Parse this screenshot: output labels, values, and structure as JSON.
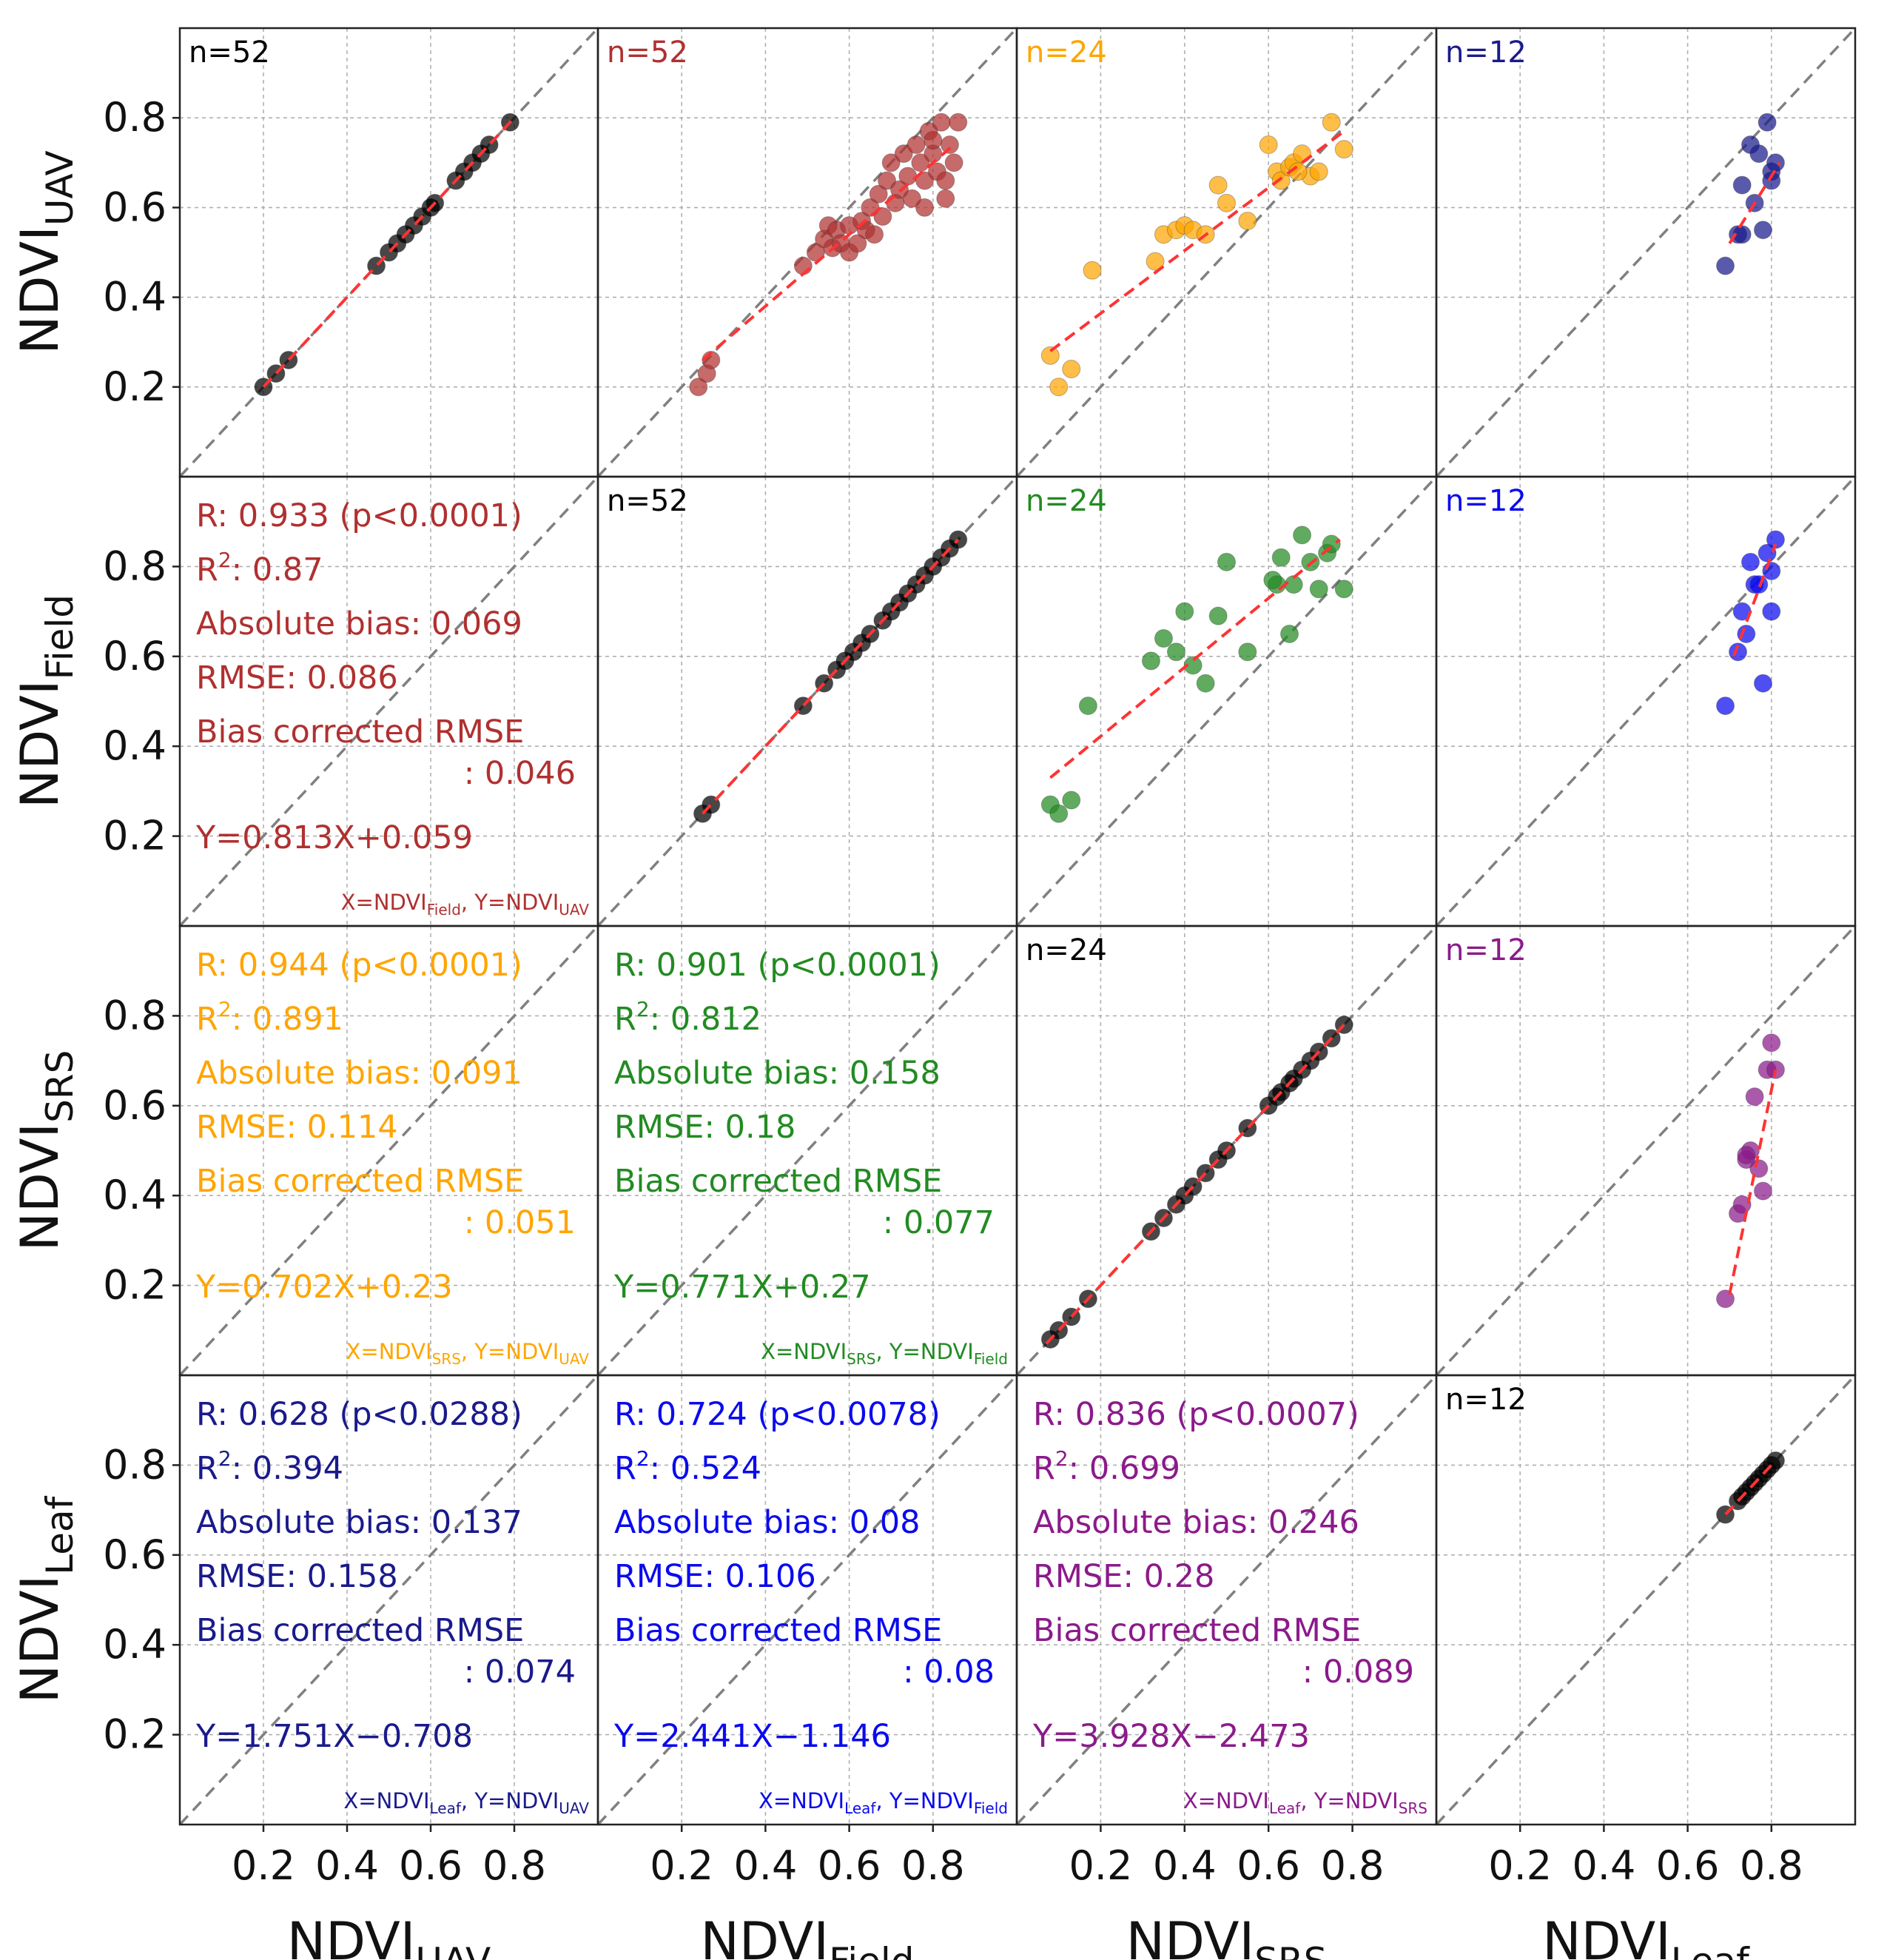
{
  "chart_data": {
    "type": "scatter",
    "title": "",
    "colors": {
      "uav": "#b03030",
      "field": "#228b22",
      "srs": "#ffa500",
      "leaf": "#1a1a8c",
      "leaf_field": "#0a0aee",
      "leaf_srs": "#8b1a8b",
      "diag": "#000000",
      "identity_line": "#808080",
      "fit_line": "#ff3333"
    },
    "axis": {
      "xlim": [
        0.0,
        1.0
      ],
      "ylim": [
        0.0,
        1.0
      ],
      "ticks": [
        0.2,
        0.4,
        0.6,
        0.8
      ],
      "tick_labels": [
        "0.2",
        "0.4",
        "0.6",
        "0.8"
      ],
      "grid": true
    },
    "row_labels": [
      {
        "main": "NDVI",
        "sub": "UAV"
      },
      {
        "main": "NDVI",
        "sub": "Field"
      },
      {
        "main": "NDVI",
        "sub": "SRS"
      },
      {
        "main": "NDVI",
        "sub": "Leaf"
      }
    ],
    "col_labels": [
      {
        "main": "NDVI",
        "sub": "UAV"
      },
      {
        "main": "NDVI",
        "sub": "Field"
      },
      {
        "main": "NDVI",
        "sub": "SRS"
      },
      {
        "main": "NDVI",
        "sub": "Leaf"
      }
    ],
    "scatter_panels": [
      {
        "id": "uav-vs-uav",
        "row": 0,
        "col": 0,
        "n_label": "n=52",
        "color": "#000000",
        "label_color": "#000000",
        "fit": [
          [
            0.2,
            0.2
          ],
          [
            0.8,
            0.8
          ]
        ],
        "x": [
          0.2,
          0.23,
          0.26,
          0.47,
          0.5,
          0.52,
          0.54,
          0.56,
          0.58,
          0.6,
          0.61,
          0.66,
          0.68,
          0.7,
          0.72,
          0.74,
          0.79
        ],
        "y": [
          0.2,
          0.23,
          0.26,
          0.47,
          0.5,
          0.52,
          0.54,
          0.56,
          0.58,
          0.6,
          0.61,
          0.66,
          0.68,
          0.7,
          0.72,
          0.74,
          0.79
        ]
      },
      {
        "id": "uav-vs-field",
        "row": 0,
        "col": 1,
        "n_label": "n=52",
        "color": "#b03030",
        "label_color": "#b03030",
        "fit": [
          [
            0.25,
            0.26
          ],
          [
            0.85,
            0.74
          ]
        ],
        "x": [
          0.24,
          0.26,
          0.27,
          0.49,
          0.52,
          0.54,
          0.55,
          0.56,
          0.57,
          0.58,
          0.6,
          0.6,
          0.62,
          0.63,
          0.64,
          0.65,
          0.66,
          0.67,
          0.68,
          0.69,
          0.7,
          0.71,
          0.72,
          0.73,
          0.74,
          0.75,
          0.76,
          0.77,
          0.78,
          0.79,
          0.8,
          0.81,
          0.82,
          0.83,
          0.84,
          0.85,
          0.86,
          0.78,
          0.8,
          0.83
        ],
        "y": [
          0.2,
          0.23,
          0.26,
          0.47,
          0.5,
          0.53,
          0.56,
          0.51,
          0.55,
          0.52,
          0.5,
          0.56,
          0.52,
          0.57,
          0.55,
          0.6,
          0.54,
          0.63,
          0.58,
          0.66,
          0.7,
          0.61,
          0.64,
          0.72,
          0.67,
          0.62,
          0.74,
          0.7,
          0.66,
          0.77,
          0.72,
          0.68,
          0.79,
          0.66,
          0.74,
          0.7,
          0.79,
          0.6,
          0.75,
          0.62
        ]
      },
      {
        "id": "uav-vs-srs",
        "row": 0,
        "col": 2,
        "n_label": "n=24",
        "color": "#ffa500",
        "label_color": "#ffa500",
        "fit": [
          [
            0.08,
            0.28
          ],
          [
            0.78,
            0.77
          ]
        ],
        "x": [
          0.08,
          0.1,
          0.13,
          0.18,
          0.33,
          0.35,
          0.38,
          0.4,
          0.42,
          0.45,
          0.48,
          0.5,
          0.55,
          0.6,
          0.62,
          0.63,
          0.65,
          0.66,
          0.68,
          0.7,
          0.72,
          0.75,
          0.78,
          0.67
        ],
        "y": [
          0.27,
          0.2,
          0.24,
          0.46,
          0.48,
          0.54,
          0.55,
          0.56,
          0.55,
          0.54,
          0.65,
          0.61,
          0.57,
          0.74,
          0.68,
          0.66,
          0.69,
          0.7,
          0.72,
          0.67,
          0.68,
          0.79,
          0.73,
          0.68
        ]
      },
      {
        "id": "uav-vs-leaf",
        "row": 0,
        "col": 3,
        "n_label": "n=12",
        "color": "#1a1a8c",
        "label_color": "#1a1a8c",
        "fit": [
          [
            0.7,
            0.52
          ],
          [
            0.82,
            0.7
          ]
        ],
        "x": [
          0.69,
          0.72,
          0.73,
          0.75,
          0.76,
          0.77,
          0.78,
          0.79,
          0.8,
          0.81,
          0.8,
          0.73
        ],
        "y": [
          0.47,
          0.54,
          0.65,
          0.74,
          0.61,
          0.72,
          0.55,
          0.79,
          0.68,
          0.7,
          0.66,
          0.54
        ]
      },
      {
        "id": "field-vs-field",
        "row": 1,
        "col": 1,
        "n_label": "n=52",
        "color": "#000000",
        "label_color": "#000000",
        "fit": [
          [
            0.25,
            0.25
          ],
          [
            0.86,
            0.86
          ]
        ],
        "x": [
          0.25,
          0.27,
          0.49,
          0.54,
          0.57,
          0.59,
          0.61,
          0.63,
          0.65,
          0.68,
          0.7,
          0.72,
          0.74,
          0.76,
          0.78,
          0.8,
          0.82,
          0.84,
          0.86
        ],
        "y": [
          0.25,
          0.27,
          0.49,
          0.54,
          0.57,
          0.59,
          0.61,
          0.63,
          0.65,
          0.68,
          0.7,
          0.72,
          0.74,
          0.76,
          0.78,
          0.8,
          0.82,
          0.84,
          0.86
        ]
      },
      {
        "id": "field-vs-srs",
        "row": 1,
        "col": 2,
        "n_label": "n=24",
        "color": "#228b22",
        "label_color": "#228b22",
        "fit": [
          [
            0.08,
            0.33
          ],
          [
            0.77,
            0.86
          ]
        ],
        "x": [
          0.08,
          0.1,
          0.13,
          0.17,
          0.32,
          0.35,
          0.38,
          0.4,
          0.42,
          0.45,
          0.48,
          0.5,
          0.55,
          0.62,
          0.63,
          0.65,
          0.66,
          0.68,
          0.7,
          0.72,
          0.74,
          0.75,
          0.78,
          0.61
        ],
        "y": [
          0.27,
          0.25,
          0.28,
          0.49,
          0.59,
          0.64,
          0.61,
          0.7,
          0.58,
          0.54,
          0.69,
          0.81,
          0.61,
          0.76,
          0.82,
          0.65,
          0.76,
          0.87,
          0.81,
          0.75,
          0.83,
          0.85,
          0.75,
          0.77
        ]
      },
      {
        "id": "field-vs-leaf",
        "row": 1,
        "col": 3,
        "n_label": "n=12",
        "color": "#0a0aee",
        "label_color": "#0a0aee",
        "fit": [
          [
            0.71,
            0.6
          ],
          [
            0.81,
            0.85
          ]
        ],
        "x": [
          0.69,
          0.72,
          0.73,
          0.75,
          0.76,
          0.77,
          0.78,
          0.79,
          0.8,
          0.81,
          0.8,
          0.74
        ],
        "y": [
          0.49,
          0.61,
          0.7,
          0.81,
          0.76,
          0.76,
          0.54,
          0.83,
          0.7,
          0.86,
          0.79,
          0.65
        ]
      },
      {
        "id": "srs-vs-srs",
        "row": 2,
        "col": 2,
        "n_label": "n=24",
        "color": "#000000",
        "label_color": "#000000",
        "fit": [
          [
            0.07,
            0.07
          ],
          [
            0.78,
            0.78
          ]
        ],
        "x": [
          0.08,
          0.1,
          0.13,
          0.17,
          0.32,
          0.35,
          0.38,
          0.4,
          0.42,
          0.45,
          0.48,
          0.5,
          0.55,
          0.6,
          0.62,
          0.63,
          0.65,
          0.66,
          0.68,
          0.7,
          0.72,
          0.75,
          0.78
        ],
        "y": [
          0.08,
          0.1,
          0.13,
          0.17,
          0.32,
          0.35,
          0.38,
          0.4,
          0.42,
          0.45,
          0.48,
          0.5,
          0.55,
          0.6,
          0.62,
          0.63,
          0.65,
          0.66,
          0.68,
          0.7,
          0.72,
          0.75,
          0.78
        ]
      },
      {
        "id": "srs-vs-leaf",
        "row": 2,
        "col": 3,
        "n_label": "n=12",
        "color": "#8b1a8b",
        "label_color": "#8b1a8b",
        "fit": [
          [
            0.7,
            0.18
          ],
          [
            0.81,
            0.68
          ]
        ],
        "x": [
          0.69,
          0.72,
          0.73,
          0.74,
          0.75,
          0.76,
          0.77,
          0.78,
          0.79,
          0.8,
          0.81,
          0.74
        ],
        "y": [
          0.17,
          0.36,
          0.38,
          0.48,
          0.5,
          0.62,
          0.46,
          0.41,
          0.68,
          0.74,
          0.68,
          0.49
        ]
      },
      {
        "id": "leaf-vs-leaf",
        "row": 3,
        "col": 3,
        "n_label": "n=12",
        "color": "#000000",
        "label_color": "#000000",
        "fit": [
          [
            0.69,
            0.69
          ],
          [
            0.81,
            0.81
          ]
        ],
        "x": [
          0.69,
          0.72,
          0.73,
          0.74,
          0.75,
          0.76,
          0.77,
          0.78,
          0.79,
          0.8,
          0.81
        ],
        "y": [
          0.69,
          0.72,
          0.73,
          0.74,
          0.75,
          0.76,
          0.77,
          0.78,
          0.79,
          0.8,
          0.81
        ]
      }
    ],
    "stats_panels": [
      {
        "row": 1,
        "col": 0,
        "color": "#b03030",
        "r_line": "R: 0.933 (p<0.0001)",
        "r2_value": ": 0.87",
        "abs_bias": "Absolute bias: 0.069",
        "rmse": "RMSE: 0.086",
        "bc_rmse": "Bias corrected RMSE",
        "bc_rmse_value": ": 0.046",
        "equation": "Y=0.813X+0.059",
        "xvar": "Field",
        "yvar": "UAV"
      },
      {
        "row": 2,
        "col": 0,
        "color": "#ffa500",
        "r_line": "R: 0.944 (p<0.0001)",
        "r2_value": ": 0.891",
        "abs_bias": "Absolute bias: 0.091",
        "rmse": "RMSE: 0.114",
        "bc_rmse": "Bias corrected RMSE",
        "bc_rmse_value": ": 0.051",
        "equation": "Y=0.702X+0.23",
        "xvar": "SRS",
        "yvar": "UAV"
      },
      {
        "row": 2,
        "col": 1,
        "color": "#228b22",
        "r_line": "R: 0.901 (p<0.0001)",
        "r2_value": ": 0.812",
        "abs_bias": "Absolute bias: 0.158",
        "rmse": "RMSE: 0.18",
        "bc_rmse": "Bias corrected RMSE",
        "bc_rmse_value": ": 0.077",
        "equation": "Y=0.771X+0.27",
        "xvar": "SRS",
        "yvar": "Field"
      },
      {
        "row": 3,
        "col": 0,
        "color": "#1a1a8c",
        "r_line": "R: 0.628 (p<0.0288)",
        "r2_value": ": 0.394",
        "abs_bias": "Absolute bias: 0.137",
        "rmse": "RMSE: 0.158",
        "bc_rmse": "Bias corrected RMSE",
        "bc_rmse_value": ": 0.074",
        "equation": "Y=1.751X−0.708",
        "xvar": "Leaf",
        "yvar": "UAV"
      },
      {
        "row": 3,
        "col": 1,
        "color": "#0a0aee",
        "r_line": "R: 0.724 (p<0.0078)",
        "r2_value": ": 0.524",
        "abs_bias": "Absolute bias: 0.08",
        "rmse": "RMSE: 0.106",
        "bc_rmse": "Bias corrected RMSE",
        "bc_rmse_value": ": 0.08",
        "equation": "Y=2.441X−1.146",
        "xvar": "Leaf",
        "yvar": "Field"
      },
      {
        "row": 3,
        "col": 2,
        "color": "#8b1a8b",
        "r_line": "R: 0.836 (p<0.0007)",
        "r2_value": ": 0.699",
        "abs_bias": "Absolute bias: 0.246",
        "rmse": "RMSE: 0.28",
        "bc_rmse": "Bias corrected RMSE",
        "bc_rmse_value": ": 0.089",
        "equation": "Y=3.928X−2.473",
        "xvar": "Leaf",
        "yvar": "SRS"
      }
    ],
    "r2_prefix": "R",
    "r2_sup": "2",
    "var_prefix": "NDVI",
    "eq_xvar_prefix": "X=NDVI",
    "eq_sep": ", ",
    "eq_yvar_prefix": "Y=NDVI"
  }
}
